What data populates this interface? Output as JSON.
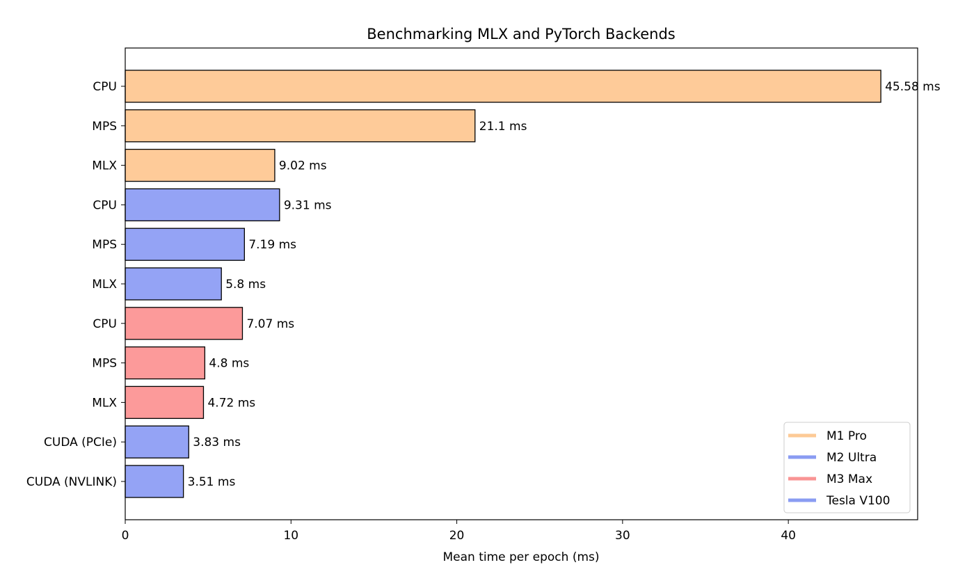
{
  "chart_data": {
    "type": "bar",
    "orientation": "horizontal",
    "title": "Benchmarking MLX and PyTorch Backends",
    "xlabel": "Mean time per epoch (ms)",
    "ylabel": "",
    "xlim": [
      0,
      47.8
    ],
    "xticks": [
      0,
      10,
      20,
      30,
      40
    ],
    "grid": false,
    "legend_position": "bottom-right",
    "bars": [
      {
        "category": "CPU",
        "value": 45.58,
        "label": "45.58 ms",
        "group": "M1 Pro"
      },
      {
        "category": "MPS",
        "value": 21.1,
        "label": "21.1 ms",
        "group": "M1 Pro"
      },
      {
        "category": "MLX",
        "value": 9.02,
        "label": "9.02 ms",
        "group": "M1 Pro"
      },
      {
        "category": "CPU",
        "value": 9.31,
        "label": "9.31 ms",
        "group": "M2 Ultra"
      },
      {
        "category": "MPS",
        "value": 7.19,
        "label": "7.19 ms",
        "group": "M2 Ultra"
      },
      {
        "category": "MLX",
        "value": 5.8,
        "label": "5.8 ms",
        "group": "M2 Ultra"
      },
      {
        "category": "CPU",
        "value": 7.07,
        "label": "7.07 ms",
        "group": "M3 Max"
      },
      {
        "category": "MPS",
        "value": 4.8,
        "label": "4.8 ms",
        "group": "M3 Max"
      },
      {
        "category": "MLX",
        "value": 4.72,
        "label": "4.72 ms",
        "group": "M3 Max"
      },
      {
        "category": "CUDA (PCIe)",
        "value": 3.83,
        "label": "3.83 ms",
        "group": "Tesla V100"
      },
      {
        "category": "CUDA (NVLINK)",
        "value": 3.51,
        "label": "3.51 ms",
        "group": "Tesla V100"
      }
    ],
    "legend": [
      {
        "name": "M1 Pro",
        "color": "#fdca96"
      },
      {
        "name": "M2 Ultra",
        "color": "#8a9cf2"
      },
      {
        "name": "M3 Max",
        "color": "#f99494"
      },
      {
        "name": "Tesla V100",
        "color": "#8a9cf2"
      }
    ],
    "colors": {
      "M1 Pro": "#fecb99",
      "M2 Ultra": "#94a3f5",
      "M3 Max": "#fc9a9a",
      "Tesla V100": "#94a3f5"
    }
  }
}
